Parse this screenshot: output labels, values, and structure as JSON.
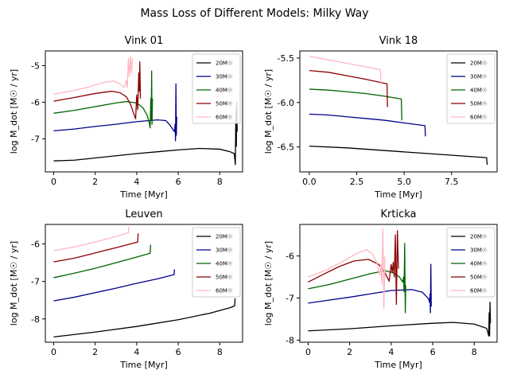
{
  "figure": {
    "title": "Mass Loss of Different Models: Milky Way"
  },
  "legend_labels": [
    "20M☉",
    "30M☉",
    "40M☉",
    "50M☉",
    "60M☉"
  ],
  "colors": [
    "#000000",
    "#00008b",
    "#006400",
    "#8b0000",
    "#ffb6c1"
  ],
  "chart_data": [
    {
      "type": "line",
      "title": "Vink 01",
      "xlabel": "Time [Myr]",
      "ylabel": "log M_dot [M☉ / yr]",
      "xlim": [
        -0.4,
        9.1
      ],
      "ylim": [
        -7.9,
        -4.6
      ],
      "xticks": [
        0,
        2,
        4,
        6,
        8
      ],
      "xtick_labels": [
        "0",
        "2",
        "4",
        "6",
        "8"
      ],
      "yticks": [
        -7,
        -6,
        -5
      ],
      "ytick_labels": [
        "-7",
        "-6",
        "-5"
      ],
      "legend_position": "upper-right",
      "series": [
        {
          "name": "20M☉",
          "color": "#000000",
          "points": [
            [
              0,
              -7.6
            ],
            [
              1,
              -7.58
            ],
            [
              2,
              -7.52
            ],
            [
              3,
              -7.46
            ],
            [
              4,
              -7.4
            ],
            [
              5,
              -7.35
            ],
            [
              6,
              -7.3
            ],
            [
              7,
              -7.26
            ],
            [
              8,
              -7.28
            ],
            [
              8.5,
              -7.35
            ],
            [
              8.7,
              -7.4
            ],
            [
              8.75,
              -7.7
            ],
            [
              8.78,
              -6.2
            ],
            [
              8.8,
              -7.2
            ],
            [
              8.82,
              -6.0
            ],
            [
              8.84,
              -6.8
            ]
          ]
        },
        {
          "name": "30M☉",
          "color": "#00008b",
          "points": [
            [
              0,
              -6.78
            ],
            [
              1,
              -6.73
            ],
            [
              2,
              -6.66
            ],
            [
              3,
              -6.6
            ],
            [
              4,
              -6.53
            ],
            [
              5,
              -6.48
            ],
            [
              5.4,
              -6.5
            ],
            [
              5.6,
              -6.62
            ],
            [
              5.75,
              -6.75
            ],
            [
              5.82,
              -6.8
            ],
            [
              5.85,
              -6.6
            ],
            [
              5.87,
              -7.05
            ],
            [
              5.89,
              -5.5
            ],
            [
              5.91,
              -6.9
            ],
            [
              5.93,
              -6.4
            ]
          ]
        },
        {
          "name": "40M☉",
          "color": "#006400",
          "points": [
            [
              0,
              -6.3
            ],
            [
              1,
              -6.22
            ],
            [
              2,
              -6.12
            ],
            [
              3,
              -6.02
            ],
            [
              3.5,
              -5.98
            ],
            [
              4,
              -6.02
            ],
            [
              4.3,
              -6.15
            ],
            [
              4.5,
              -6.35
            ],
            [
              4.6,
              -6.55
            ],
            [
              4.65,
              -6.7
            ],
            [
              4.68,
              -5.9
            ],
            [
              4.7,
              -6.5
            ],
            [
              4.72,
              -5.15
            ],
            [
              4.74,
              -6.6
            ],
            [
              4.76,
              -5.9
            ]
          ]
        },
        {
          "name": "50M☉",
          "color": "#8b0000",
          "points": [
            [
              0,
              -5.97
            ],
            [
              1,
              -5.87
            ],
            [
              2,
              -5.76
            ],
            [
              2.8,
              -5.7
            ],
            [
              3.2,
              -5.74
            ],
            [
              3.5,
              -5.85
            ],
            [
              3.7,
              -6.05
            ],
            [
              3.85,
              -6.3
            ],
            [
              3.95,
              -6.45
            ],
            [
              4.0,
              -5.8
            ],
            [
              4.05,
              -6.2
            ],
            [
              4.1,
              -5.2
            ],
            [
              4.13,
              -5.7
            ],
            [
              4.15,
              -4.9
            ],
            [
              4.18,
              -5.9
            ]
          ]
        },
        {
          "name": "60M☉",
          "color": "#ffb6c1",
          "points": [
            [
              0,
              -5.78
            ],
            [
              0.8,
              -5.7
            ],
            [
              1.6,
              -5.6
            ],
            [
              2.4,
              -5.46
            ],
            [
              2.9,
              -5.42
            ],
            [
              3.2,
              -5.5
            ],
            [
              3.4,
              -5.6
            ],
            [
              3.5,
              -5.4
            ],
            [
              3.55,
              -5.6
            ],
            [
              3.6,
              -4.8
            ],
            [
              3.65,
              -5.3
            ],
            [
              3.7,
              -4.75
            ],
            [
              3.75,
              -5.2
            ],
            [
              3.8,
              -4.8
            ]
          ]
        }
      ]
    },
    {
      "type": "line",
      "title": "Vink 18",
      "xlabel": "Time [Myr]",
      "ylabel": "log M_dot [M☉ / yr]",
      "xlim": [
        -0.5,
        9.9
      ],
      "ylim": [
        -6.78,
        -5.42
      ],
      "xticks": [
        0,
        2.5,
        5,
        7.5
      ],
      "xtick_labels": [
        "0.0",
        "2.5",
        "5.0",
        "7.5"
      ],
      "yticks": [
        -6.5,
        -6.0,
        -5.5
      ],
      "ytick_labels": [
        "-6.5",
        "-6.0",
        "-5.5"
      ],
      "legend_position": "upper-right",
      "series": [
        {
          "name": "20M☉",
          "color": "#000000",
          "points": [
            [
              0,
              -6.49
            ],
            [
              2,
              -6.51
            ],
            [
              4,
              -6.54
            ],
            [
              6,
              -6.57
            ],
            [
              8,
              -6.6
            ],
            [
              9.35,
              -6.62
            ],
            [
              9.38,
              -6.7
            ]
          ]
        },
        {
          "name": "30M☉",
          "color": "#00008b",
          "points": [
            [
              0,
              -6.13
            ],
            [
              1,
              -6.14
            ],
            [
              2,
              -6.16
            ],
            [
              3,
              -6.18
            ],
            [
              4,
              -6.2
            ],
            [
              5,
              -6.23
            ],
            [
              6.1,
              -6.26
            ],
            [
              6.12,
              -6.38
            ]
          ]
        },
        {
          "name": "40M☉",
          "color": "#006400",
          "points": [
            [
              0,
              -5.85
            ],
            [
              1,
              -5.86
            ],
            [
              2,
              -5.88
            ],
            [
              3,
              -5.9
            ],
            [
              4,
              -5.93
            ],
            [
              4.85,
              -5.96
            ],
            [
              4.88,
              -6.2
            ]
          ]
        },
        {
          "name": "50M☉",
          "color": "#8b0000",
          "points": [
            [
              0,
              -5.64
            ],
            [
              1,
              -5.66
            ],
            [
              2,
              -5.7
            ],
            [
              3,
              -5.74
            ],
            [
              4.1,
              -5.79
            ],
            [
              4.12,
              -6.05
            ]
          ]
        },
        {
          "name": "60M☉",
          "color": "#ffb6c1",
          "points": [
            [
              0,
              -5.48
            ],
            [
              1,
              -5.52
            ],
            [
              2,
              -5.56
            ],
            [
              3,
              -5.6
            ],
            [
              3.75,
              -5.63
            ],
            [
              3.78,
              -5.8
            ]
          ]
        }
      ]
    },
    {
      "type": "line",
      "title": "Leuven",
      "xlabel": "Time [Myr]",
      "ylabel": "log M_dot [M☉ / yr]",
      "xlim": [
        -0.4,
        9.1
      ],
      "ylim": [
        -8.62,
        -5.48
      ],
      "xticks": [
        0,
        2,
        4,
        6,
        8
      ],
      "xtick_labels": [
        "0",
        "2",
        "4",
        "6",
        "8"
      ],
      "yticks": [
        -8,
        -7,
        -6
      ],
      "ytick_labels": [
        "-8",
        "-7",
        "-6"
      ],
      "legend_position": "upper-right",
      "series": [
        {
          "name": "20M☉",
          "color": "#000000",
          "points": [
            [
              0,
              -8.48
            ],
            [
              2,
              -8.35
            ],
            [
              4,
              -8.2
            ],
            [
              6,
              -8.02
            ],
            [
              7.5,
              -7.85
            ],
            [
              8.5,
              -7.7
            ],
            [
              8.72,
              -7.65
            ],
            [
              8.74,
              -7.45
            ]
          ]
        },
        {
          "name": "30M☉",
          "color": "#00008b",
          "points": [
            [
              0,
              -7.52
            ],
            [
              1,
              -7.42
            ],
            [
              2,
              -7.3
            ],
            [
              3,
              -7.18
            ],
            [
              4,
              -7.05
            ],
            [
              5,
              -6.93
            ],
            [
              5.8,
              -6.82
            ],
            [
              5.82,
              -6.68
            ]
          ]
        },
        {
          "name": "40M☉",
          "color": "#006400",
          "points": [
            [
              0,
              -6.9
            ],
            [
              1,
              -6.78
            ],
            [
              2,
              -6.65
            ],
            [
              3,
              -6.5
            ],
            [
              4,
              -6.35
            ],
            [
              4.65,
              -6.25
            ],
            [
              4.67,
              -6.02
            ]
          ]
        },
        {
          "name": "50M☉",
          "color": "#8b0000",
          "points": [
            [
              0,
              -6.48
            ],
            [
              1,
              -6.38
            ],
            [
              2,
              -6.24
            ],
            [
              3,
              -6.1
            ],
            [
              4.05,
              -5.95
            ],
            [
              4.07,
              -5.72
            ]
          ]
        },
        {
          "name": "60M☉",
          "color": "#ffb6c1",
          "points": [
            [
              0,
              -6.18
            ],
            [
              1,
              -6.08
            ],
            [
              2,
              -5.95
            ],
            [
              3,
              -5.8
            ],
            [
              3.6,
              -5.7
            ],
            [
              3.62,
              -5.55
            ]
          ]
        }
      ]
    },
    {
      "type": "line",
      "title": "Krticka",
      "xlabel": "Time [Myr]",
      "ylabel": "log M_dot [M☉ / yr]",
      "xlim": [
        -0.4,
        9.1
      ],
      "ylim": [
        -8.05,
        -5.25
      ],
      "xticks": [
        0,
        2,
        4,
        6,
        8
      ],
      "xtick_labels": [
        "0",
        "2",
        "4",
        "6",
        "8"
      ],
      "yticks": [
        -8,
        -7,
        -6
      ],
      "ytick_labels": [
        "-8",
        "-7",
        "-6"
      ],
      "legend_position": "upper-right",
      "series": [
        {
          "name": "20M☉",
          "color": "#000000",
          "points": [
            [
              0,
              -7.78
            ],
            [
              2,
              -7.73
            ],
            [
              4,
              -7.66
            ],
            [
              6,
              -7.6
            ],
            [
              7,
              -7.58
            ],
            [
              8,
              -7.62
            ],
            [
              8.6,
              -7.72
            ],
            [
              8.7,
              -7.9
            ],
            [
              8.72,
              -7.35
            ],
            [
              8.74,
              -7.9
            ],
            [
              8.76,
              -7.1
            ],
            [
              8.78,
              -7.6
            ]
          ]
        },
        {
          "name": "30M☉",
          "color": "#00008b",
          "points": [
            [
              0,
              -7.12
            ],
            [
              1,
              -7.05
            ],
            [
              2,
              -6.98
            ],
            [
              3,
              -6.9
            ],
            [
              4,
              -6.82
            ],
            [
              5,
              -6.8
            ],
            [
              5.5,
              -6.86
            ],
            [
              5.8,
              -7.02
            ],
            [
              5.85,
              -7.1
            ],
            [
              5.87,
              -6.9
            ],
            [
              5.89,
              -7.35
            ],
            [
              5.91,
              -6.2
            ],
            [
              5.93,
              -7.2
            ]
          ]
        },
        {
          "name": "40M☉",
          "color": "#006400",
          "points": [
            [
              0,
              -6.78
            ],
            [
              1,
              -6.68
            ],
            [
              2,
              -6.55
            ],
            [
              3,
              -6.42
            ],
            [
              3.7,
              -6.35
            ],
            [
              4.1,
              -6.4
            ],
            [
              4.4,
              -6.5
            ],
            [
              4.55,
              -6.62
            ],
            [
              4.6,
              -6.5
            ],
            [
              4.62,
              -6.85
            ],
            [
              4.65,
              -5.7
            ],
            [
              4.68,
              -7.35
            ],
            [
              4.7,
              -6.7
            ]
          ]
        },
        {
          "name": "50M☉",
          "color": "#8b0000",
          "points": [
            [
              0,
              -6.62
            ],
            [
              0.8,
              -6.42
            ],
            [
              1.5,
              -6.25
            ],
            [
              2.2,
              -6.12
            ],
            [
              2.9,
              -6.08
            ],
            [
              3.4,
              -6.2
            ],
            [
              3.7,
              -6.4
            ],
            [
              3.9,
              -6.6
            ],
            [
              4.0,
              -6.2
            ],
            [
              4.05,
              -6.4
            ],
            [
              4.1,
              -6.15
            ],
            [
              4.15,
              -6.5
            ],
            [
              4.2,
              -5.5
            ],
            [
              4.25,
              -7.15
            ],
            [
              4.3,
              -5.4
            ],
            [
              4.35,
              -6.3
            ]
          ]
        },
        {
          "name": "60M☉",
          "color": "#ffb6c1",
          "points": [
            [
              0,
              -6.5
            ],
            [
              0.8,
              -6.35
            ],
            [
              1.6,
              -6.15
            ],
            [
              2.3,
              -5.95
            ],
            [
              2.8,
              -5.85
            ],
            [
              3.1,
              -5.95
            ],
            [
              3.3,
              -6.15
            ],
            [
              3.45,
              -6.45
            ],
            [
              3.5,
              -6.2
            ],
            [
              3.55,
              -6.65
            ],
            [
              3.6,
              -5.35
            ],
            [
              3.65,
              -7.25
            ],
            [
              3.7,
              -6.0
            ]
          ]
        }
      ]
    }
  ]
}
